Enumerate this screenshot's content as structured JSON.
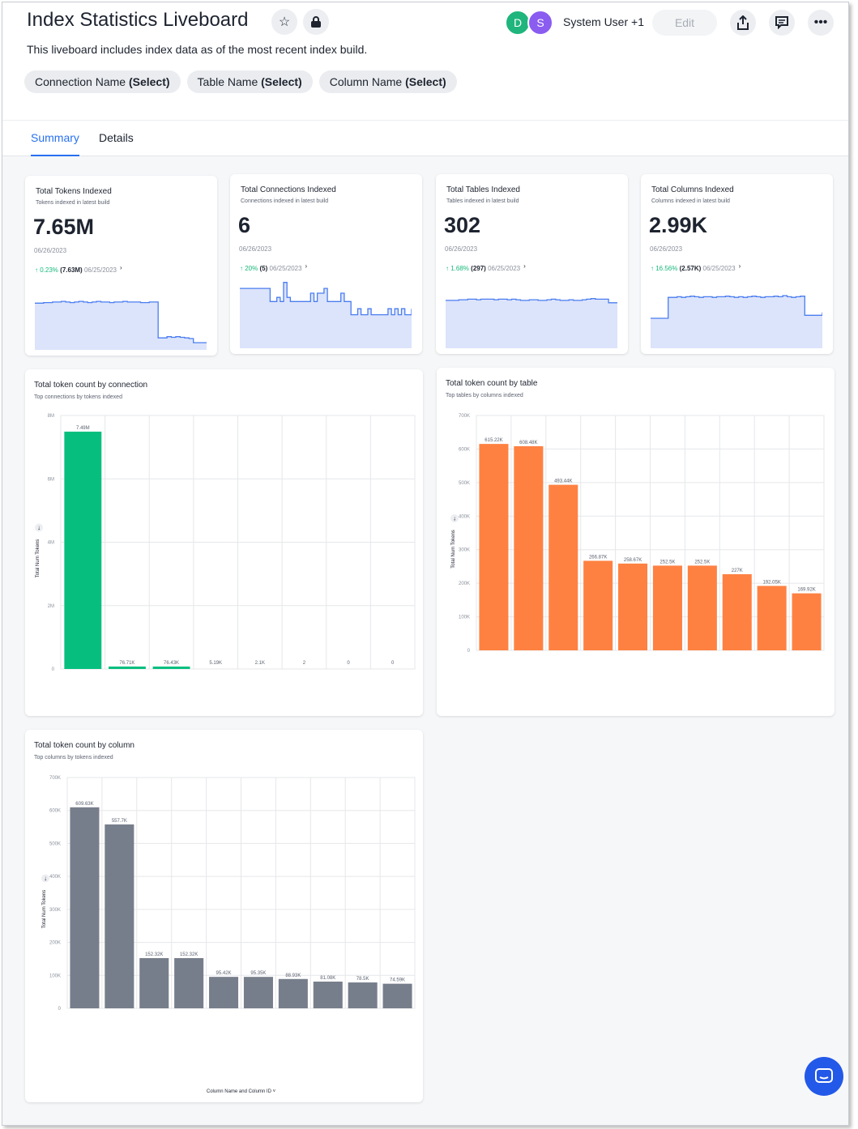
{
  "header": {
    "title": "Index Statistics Liveboard",
    "description": "This liveboard includes index data as of the most recent index build.",
    "avatars": [
      {
        "initial": "D",
        "color": "#1fb57c"
      },
      {
        "initial": "S",
        "color": "#8a5cf0"
      }
    ],
    "user_label": "System User +1",
    "edit_label": "Edit",
    "icons": [
      "star-icon",
      "lock-icon",
      "share-icon",
      "comment-icon",
      "more-icon"
    ]
  },
  "filters": [
    {
      "name": "Connection Name",
      "value": "(Select)"
    },
    {
      "name": "Table Name",
      "value": "(Select)"
    },
    {
      "name": "Column Name",
      "value": "(Select)"
    }
  ],
  "tabs": [
    {
      "label": "Summary",
      "active": true
    },
    {
      "label": "Details",
      "active": false
    }
  ],
  "kpis": [
    {
      "title": "Total Tokens Indexed",
      "subtitle": "Tokens indexed in latest build",
      "value": "7.65M",
      "date": "06/26/2023",
      "change": "0.23%",
      "prev": "(7.63M)",
      "prev_date": "06/25/2023",
      "sparkline": [
        78,
        78,
        79,
        79,
        80,
        80,
        81,
        80,
        79,
        80,
        81,
        80,
        79,
        80,
        81,
        80,
        80,
        79,
        80,
        80,
        81,
        80,
        80,
        80,
        79,
        79,
        80,
        80,
        20,
        20,
        22,
        21,
        22,
        21,
        20,
        19,
        12,
        12,
        12,
        12
      ]
    },
    {
      "title": "Total Connections Indexed",
      "subtitle": "Connections indexed in latest build",
      "value": "6",
      "date": "06/26/2023",
      "change": "20%",
      "prev": "(5)",
      "prev_date": "06/25/2023",
      "sparkline": [
        100,
        100,
        100,
        100,
        100,
        100,
        100,
        100,
        100,
        78,
        78,
        85,
        78,
        110,
        85,
        78,
        78,
        78,
        78,
        78,
        78,
        92,
        78,
        92,
        92,
        100,
        78,
        78,
        78,
        78,
        92,
        78,
        78,
        56,
        56,
        66,
        56,
        56,
        66,
        56,
        56,
        56,
        56,
        56,
        66,
        56,
        66,
        56,
        66,
        56,
        56,
        66
      ]
    },
    {
      "title": "Total Tables Indexed",
      "subtitle": "Tables indexed in latest build",
      "value": "302",
      "date": "06/26/2023",
      "change": "1.68%",
      "prev": "(297)",
      "prev_date": "06/25/2023",
      "sparkline": [
        80,
        80,
        80,
        81,
        81,
        82,
        82,
        81,
        82,
        82,
        82,
        81,
        82,
        82,
        81,
        82,
        81,
        80,
        80,
        81,
        81,
        80,
        80,
        81,
        82,
        81,
        80,
        80,
        81,
        80,
        80,
        81,
        82,
        83,
        82,
        82,
        82,
        76,
        76,
        76
      ]
    },
    {
      "title": "Total Columns Indexed",
      "subtitle": "Columns indexed in latest build",
      "value": "2.99K",
      "date": "06/26/2023",
      "change": "16.56%",
      "prev": "(2.57K)",
      "prev_date": "06/25/2023",
      "sparkline": [
        50,
        50,
        50,
        50,
        85,
        85,
        86,
        85,
        86,
        87,
        86,
        85,
        86,
        86,
        85,
        86,
        86,
        87,
        86,
        85,
        86,
        85,
        86,
        87,
        86,
        85,
        86,
        86,
        87,
        86,
        88,
        86,
        85,
        86,
        87,
        55,
        55,
        55,
        55,
        60
      ]
    }
  ],
  "chart_data": [
    {
      "type": "bar",
      "title": "Total token count by connection",
      "subtitle": "Top connections by tokens indexed",
      "ylabel": "Total Num Tokens",
      "xlabel": "",
      "ylim": [
        0,
        8000000
      ],
      "yticks": [
        "0",
        "2M",
        "4M",
        "6M",
        "8M"
      ],
      "color": "#06bf7f",
      "values": [
        7490000,
        76710,
        76430,
        5190,
        2100,
        2,
        0,
        0
      ],
      "labels": [
        "7.49M",
        "76.71K",
        "76.43K",
        "5.19K",
        "2.1K",
        "2",
        "0",
        "0"
      ]
    },
    {
      "type": "bar",
      "title": "Total token count by table",
      "subtitle": "Top tables by columns indexed",
      "ylabel": "Total Num Tokens",
      "xlabel": "",
      "ylim": [
        0,
        700000
      ],
      "yticks": [
        "0",
        "100K",
        "200K",
        "300K",
        "400K",
        "500K",
        "600K",
        "700K"
      ],
      "color": "#ff8142",
      "values": [
        615220,
        608480,
        493440,
        266870,
        258670,
        252500,
        252500,
        227000,
        192050,
        169920
      ],
      "labels": [
        "615.22K",
        "608.48K",
        "493.44K",
        "266.87K",
        "258.67K",
        "252.5K",
        "252.5K",
        "227K",
        "192.05K",
        "169.92K"
      ]
    },
    {
      "type": "bar",
      "title": "Total token count by column",
      "subtitle": "Top columns by tokens indexed",
      "ylabel": "Total Num Tokens",
      "xlabel": "Column Name and Column ID",
      "ylim": [
        0,
        700000
      ],
      "yticks": [
        "0",
        "100K",
        "200K",
        "300K",
        "400K",
        "500K",
        "600K",
        "700K"
      ],
      "color": "#777e8b",
      "values": [
        609630,
        557700,
        152320,
        152320,
        95420,
        95350,
        88930,
        81080,
        78500,
        74590
      ],
      "labels": [
        "609.63K",
        "557.7K",
        "152.32K",
        "152.32K",
        "95.42K",
        "95.35K",
        "88.93K",
        "81.08K",
        "78.5K",
        "74.59K"
      ]
    }
  ],
  "colors": {
    "accent": "#2770ef",
    "positive": "#16b97a",
    "sparkline": "#4a7df0",
    "sparkline_fill": "#dce4fb"
  }
}
